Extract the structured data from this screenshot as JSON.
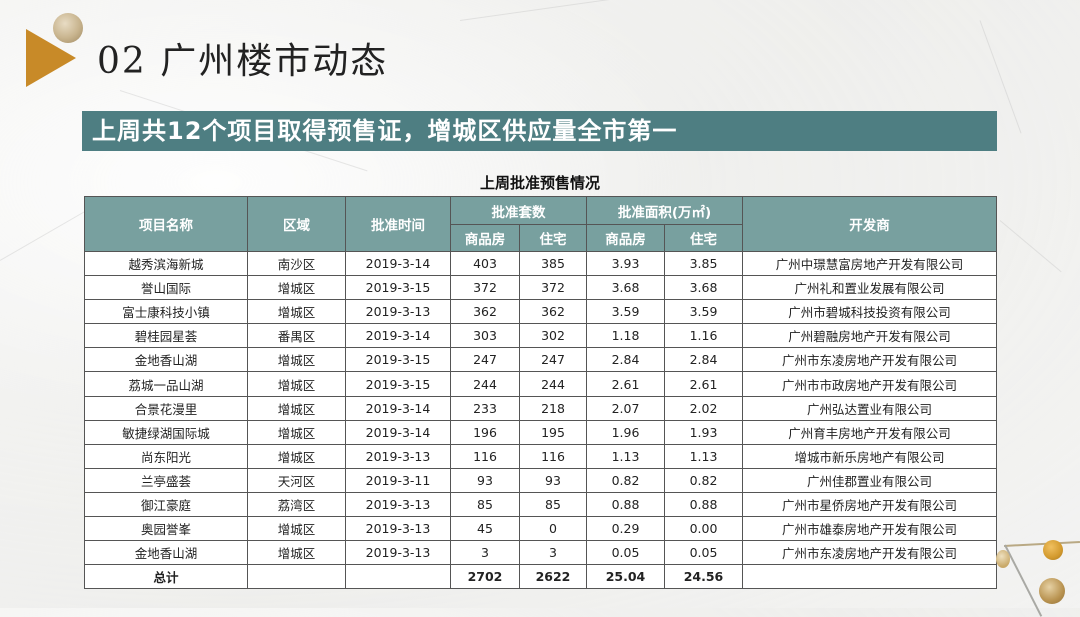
{
  "header": {
    "title": "02 广州楼市动态",
    "banner": "上周共12个项目取得预售证，增城区供应量全市第一"
  },
  "table": {
    "title": "上周批准预售情况",
    "headers": {
      "project": "项目名称",
      "district": "区域",
      "date": "批准时间",
      "units_group": "批准套数",
      "area_group": "批准面积(万㎡)",
      "commercial": "商品房",
      "residential": "住宅",
      "developer": "开发商"
    },
    "rows": [
      {
        "project": "越秀滨海新城",
        "district": "南沙区",
        "date": "2019-3-14",
        "units_commercial": "403",
        "units_residential": "385",
        "area_commercial": "3.93",
        "area_residential": "3.85",
        "developer": "广州中璟慧富房地产开发有限公司"
      },
      {
        "project": "誉山国际",
        "district": "增城区",
        "date": "2019-3-15",
        "units_commercial": "372",
        "units_residential": "372",
        "area_commercial": "3.68",
        "area_residential": "3.68",
        "developer": "广州礼和置业发展有限公司"
      },
      {
        "project": "富士康科技小镇",
        "district": "增城区",
        "date": "2019-3-13",
        "units_commercial": "362",
        "units_residential": "362",
        "area_commercial": "3.59",
        "area_residential": "3.59",
        "developer": "广州市碧城科技投资有限公司"
      },
      {
        "project": "碧桂园星荟",
        "district": "番禺区",
        "date": "2019-3-14",
        "units_commercial": "303",
        "units_residential": "302",
        "area_commercial": "1.18",
        "area_residential": "1.16",
        "developer": "广州碧融房地产开发有限公司"
      },
      {
        "project": "金地香山湖",
        "district": "增城区",
        "date": "2019-3-15",
        "units_commercial": "247",
        "units_residential": "247",
        "area_commercial": "2.84",
        "area_residential": "2.84",
        "developer": "广州市东凌房地产开发有限公司"
      },
      {
        "project": "荔城一品山湖",
        "district": "增城区",
        "date": "2019-3-15",
        "units_commercial": "244",
        "units_residential": "244",
        "area_commercial": "2.61",
        "area_residential": "2.61",
        "developer": "广州市市政房地产开发有限公司"
      },
      {
        "project": "合景花漫里",
        "district": "增城区",
        "date": "2019-3-14",
        "units_commercial": "233",
        "units_residential": "218",
        "area_commercial": "2.07",
        "area_residential": "2.02",
        "developer": "广州弘达置业有限公司"
      },
      {
        "project": "敏捷绿湖国际城",
        "district": "增城区",
        "date": "2019-3-14",
        "units_commercial": "196",
        "units_residential": "195",
        "area_commercial": "1.96",
        "area_residential": "1.93",
        "developer": "广州育丰房地产开发有限公司"
      },
      {
        "project": "尚东阳光",
        "district": "增城区",
        "date": "2019-3-13",
        "units_commercial": "116",
        "units_residential": "116",
        "area_commercial": "1.13",
        "area_residential": "1.13",
        "developer": "增城市新乐房地产有限公司"
      },
      {
        "project": "兰亭盛荟",
        "district": "天河区",
        "date": "2019-3-11",
        "units_commercial": "93",
        "units_residential": "93",
        "area_commercial": "0.82",
        "area_residential": "0.82",
        "developer": "广州佳郡置业有限公司"
      },
      {
        "project": "御江豪庭",
        "district": "荔湾区",
        "date": "2019-3-13",
        "units_commercial": "85",
        "units_residential": "85",
        "area_commercial": "0.88",
        "area_residential": "0.88",
        "developer": "广州市星侨房地产开发有限公司"
      },
      {
        "project": "奥园誉峯",
        "district": "增城区",
        "date": "2019-3-13",
        "units_commercial": "45",
        "units_residential": "0",
        "area_commercial": "0.29",
        "area_residential": "0.00",
        "developer": "广州市雄泰房地产开发有限公司"
      },
      {
        "project": "金地香山湖",
        "district": "增城区",
        "date": "2019-3-13",
        "units_commercial": "3",
        "units_residential": "3",
        "area_commercial": "0.05",
        "area_residential": "0.05",
        "developer": "广州市东凌房地产开发有限公司"
      }
    ],
    "total": {
      "label": "总计",
      "units_commercial": "2702",
      "units_residential": "2622",
      "area_commercial": "25.04",
      "area_residential": "24.56"
    }
  },
  "colors": {
    "banner": "#4e7e82",
    "header_cell": "#78a09f",
    "accent_gold": "#c88a28"
  }
}
